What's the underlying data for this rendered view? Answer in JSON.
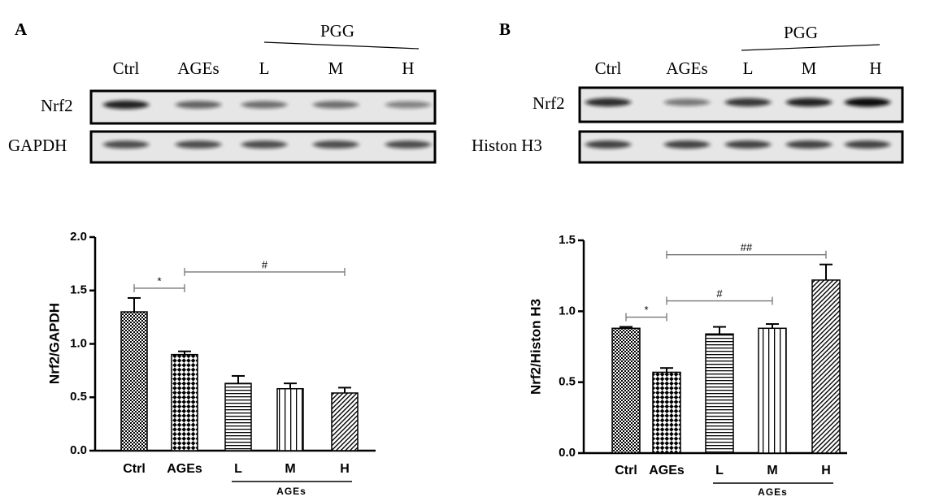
{
  "blots": [
    {
      "panel_label": "A",
      "group_label": "PGG",
      "lanes": [
        "Ctrl",
        "AGEs",
        "L",
        "M",
        "H"
      ],
      "rows": [
        "Nrf2",
        "GAPDH"
      ]
    },
    {
      "panel_label": "B",
      "group_label": "PGG",
      "lanes": [
        "Ctrl",
        "AGEs",
        "L",
        "M",
        "H"
      ],
      "rows": [
        "Nrf2",
        "Histon H3"
      ]
    }
  ],
  "chart_data": [
    {
      "type": "bar",
      "ylabel": "Nrf2/GAPDH",
      "categories": [
        "Ctrl",
        "AGEs",
        "L",
        "M",
        "H"
      ],
      "values": [
        1.3,
        0.9,
        0.63,
        0.58,
        0.54
      ],
      "errors": [
        0.13,
        0.03,
        0.07,
        0.05,
        0.05
      ],
      "patterns": [
        "checker-fine",
        "checker",
        "horizontal",
        "vertical",
        "diagonal"
      ],
      "color": "#000000",
      "ylim": [
        0,
        2.0
      ],
      "yticks": [
        {
          "value": 0,
          "label": "0.0"
        },
        {
          "value": 0.5,
          "label": "0.5"
        },
        {
          "value": 1.0,
          "label": "1.0"
        },
        {
          "value": 1.5,
          "label": "1.5"
        },
        {
          "value": 2.0,
          "label": "2.0"
        }
      ],
      "group": {
        "label": "AGEs",
        "from": "L",
        "to": "H"
      },
      "annotations": [
        {
          "text": "*",
          "from": "Ctrl",
          "to": "AGEs"
        },
        {
          "text": "#",
          "from": "AGEs",
          "to": "H"
        }
      ]
    },
    {
      "type": "bar",
      "ylabel": "Nrf2/Histon H3",
      "categories": [
        "Ctrl",
        "AGEs",
        "L",
        "M",
        "H"
      ],
      "values": [
        0.88,
        0.57,
        0.84,
        0.88,
        1.22
      ],
      "errors": [
        0.01,
        0.03,
        0.05,
        0.03,
        0.11
      ],
      "patterns": [
        "checker-fine",
        "checker",
        "horizontal",
        "vertical",
        "diagonal"
      ],
      "color": "#000000",
      "ylim": [
        0,
        1.5
      ],
      "yticks": [
        {
          "value": 0,
          "label": "0.0"
        },
        {
          "value": 0.5,
          "label": "0.5"
        },
        {
          "value": 1.0,
          "label": "1.0"
        },
        {
          "value": 1.5,
          "label": "1.5"
        }
      ],
      "group": {
        "label": "AGEs",
        "from": "L",
        "to": "H"
      },
      "annotations": [
        {
          "text": "*",
          "from": "Ctrl",
          "to": "AGEs"
        },
        {
          "text": "#",
          "from": "AGEs",
          "to": "M"
        },
        {
          "text": "##",
          "from": "AGEs",
          "to": "H"
        }
      ]
    }
  ]
}
